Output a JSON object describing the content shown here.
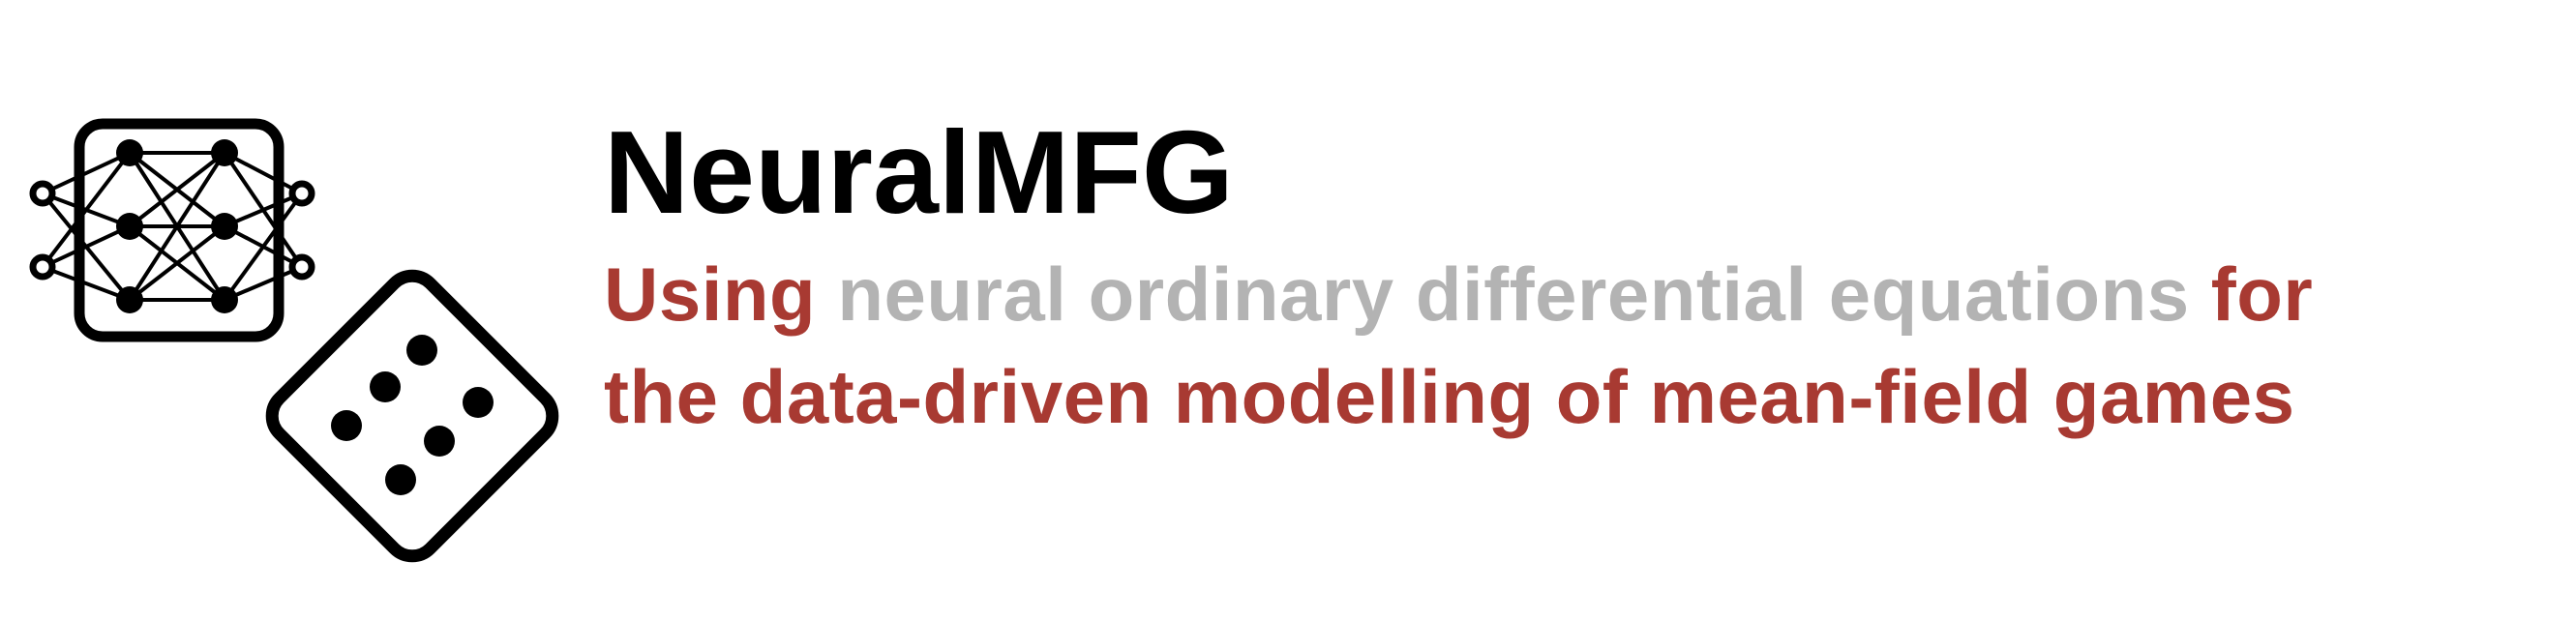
{
  "brand": {
    "title": "NeuralMFG",
    "subtitle_line1": {
      "part1": "Using",
      "part2": "neural ordinary differential equations",
      "part3": "for"
    },
    "subtitle_line2": "the data-driven modelling of mean-field games"
  },
  "colors": {
    "title": "#000000",
    "accent": "#a83a32",
    "muted": "#b3b3b3"
  },
  "icons": [
    "neural-network-icon",
    "dice-icon"
  ]
}
